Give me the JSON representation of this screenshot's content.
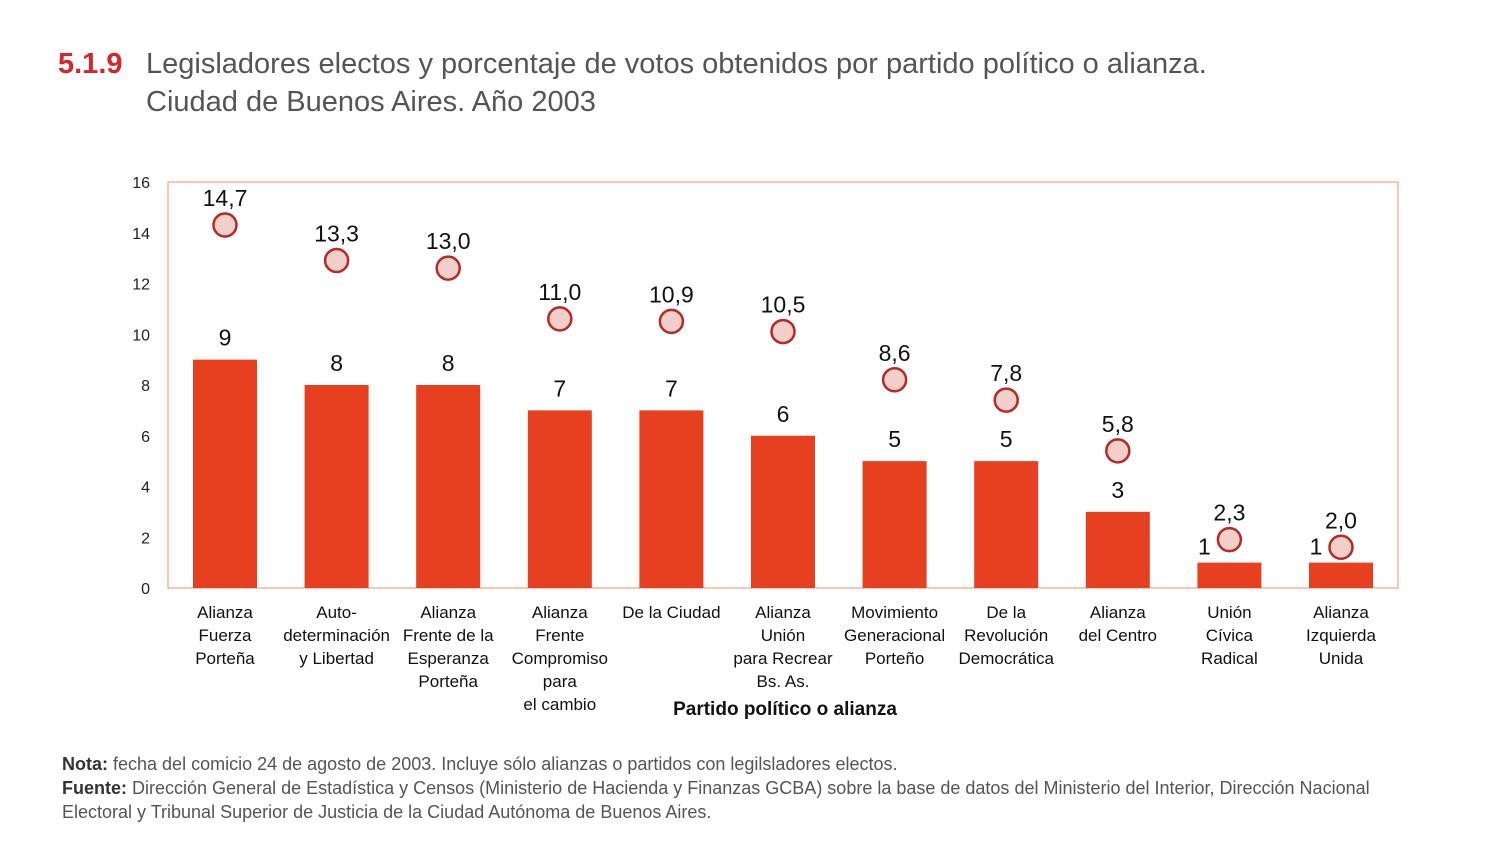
{
  "title": {
    "number": "5.1.9",
    "line1": "Legisladores electos y porcentaje de votos obtenidos por partido político o alianza.",
    "line2": "Ciudad de Buenos Aires. Año 2003"
  },
  "colors": {
    "bar": "#e5401f",
    "marker_fill": "#f2cfc9",
    "marker_stroke": "#b52a2a",
    "frame": "#f0a08a",
    "title_number": "#d6262d"
  },
  "chart_data": {
    "type": "bar",
    "title": "Legisladores electos y porcentaje de votos obtenidos por partido político o alianza",
    "xlabel": "Partido político o alianza",
    "ylabel": "",
    "ylim": [
      0,
      16
    ],
    "yticks": [
      0,
      2,
      4,
      6,
      8,
      10,
      12,
      14,
      16
    ],
    "grid": false,
    "categories": [
      [
        "Alianza",
        "Fuerza",
        "Porteña"
      ],
      [
        "Auto-",
        "determinación",
        "y Libertad"
      ],
      [
        "Alianza",
        "Frente de la",
        "Esperanza",
        "Porteña"
      ],
      [
        "Alianza",
        "Frente",
        "Compromiso",
        "para",
        "el cambio"
      ],
      [
        "De la Ciudad"
      ],
      [
        "Alianza",
        "Unión",
        "para Recrear",
        "Bs. As."
      ],
      [
        "Movimiento",
        "Generacional",
        "Porteño"
      ],
      [
        "De la",
        "Revolución",
        "Democrática"
      ],
      [
        "Alianza",
        "del Centro"
      ],
      [
        "Unión",
        "Cívica",
        "Radical"
      ],
      [
        "Alianza",
        "Izquierda",
        "Unida"
      ]
    ],
    "series": [
      {
        "name": "Legisladores electos",
        "type": "bar",
        "values": [
          9,
          8,
          8,
          7,
          7,
          6,
          5,
          5,
          3,
          1,
          1
        ],
        "labels": [
          "9",
          "8",
          "8",
          "7",
          "7",
          "6",
          "5",
          "5",
          "3",
          "1",
          "1"
        ]
      },
      {
        "name": "Porcentaje de votos",
        "type": "scatter",
        "values": [
          14.7,
          13.3,
          13.0,
          11.0,
          10.9,
          10.5,
          8.6,
          7.8,
          5.8,
          2.3,
          2.0
        ],
        "labels": [
          "14,7",
          "13,3",
          "13,0",
          "11,0",
          "10,9",
          "10,5",
          "8,6",
          "7,8",
          "5,8",
          "2,3",
          "2,0"
        ]
      }
    ]
  },
  "notes": {
    "nota_label": "Nota:",
    "nota_text": "fecha del comicio 24 de agosto de 2003. Incluye sólo alianzas o partidos con legilsladores electos.",
    "fuente_label": "Fuente:",
    "fuente_text": "Dirección General de Estadística y Censos (Ministerio de Hacienda y Finanzas GCBA) sobre la base de datos del Ministerio del Interior, Dirección Nacional Electoral y Tribunal Superior de Justicia de la Ciudad Autónoma de Buenos Aires."
  }
}
